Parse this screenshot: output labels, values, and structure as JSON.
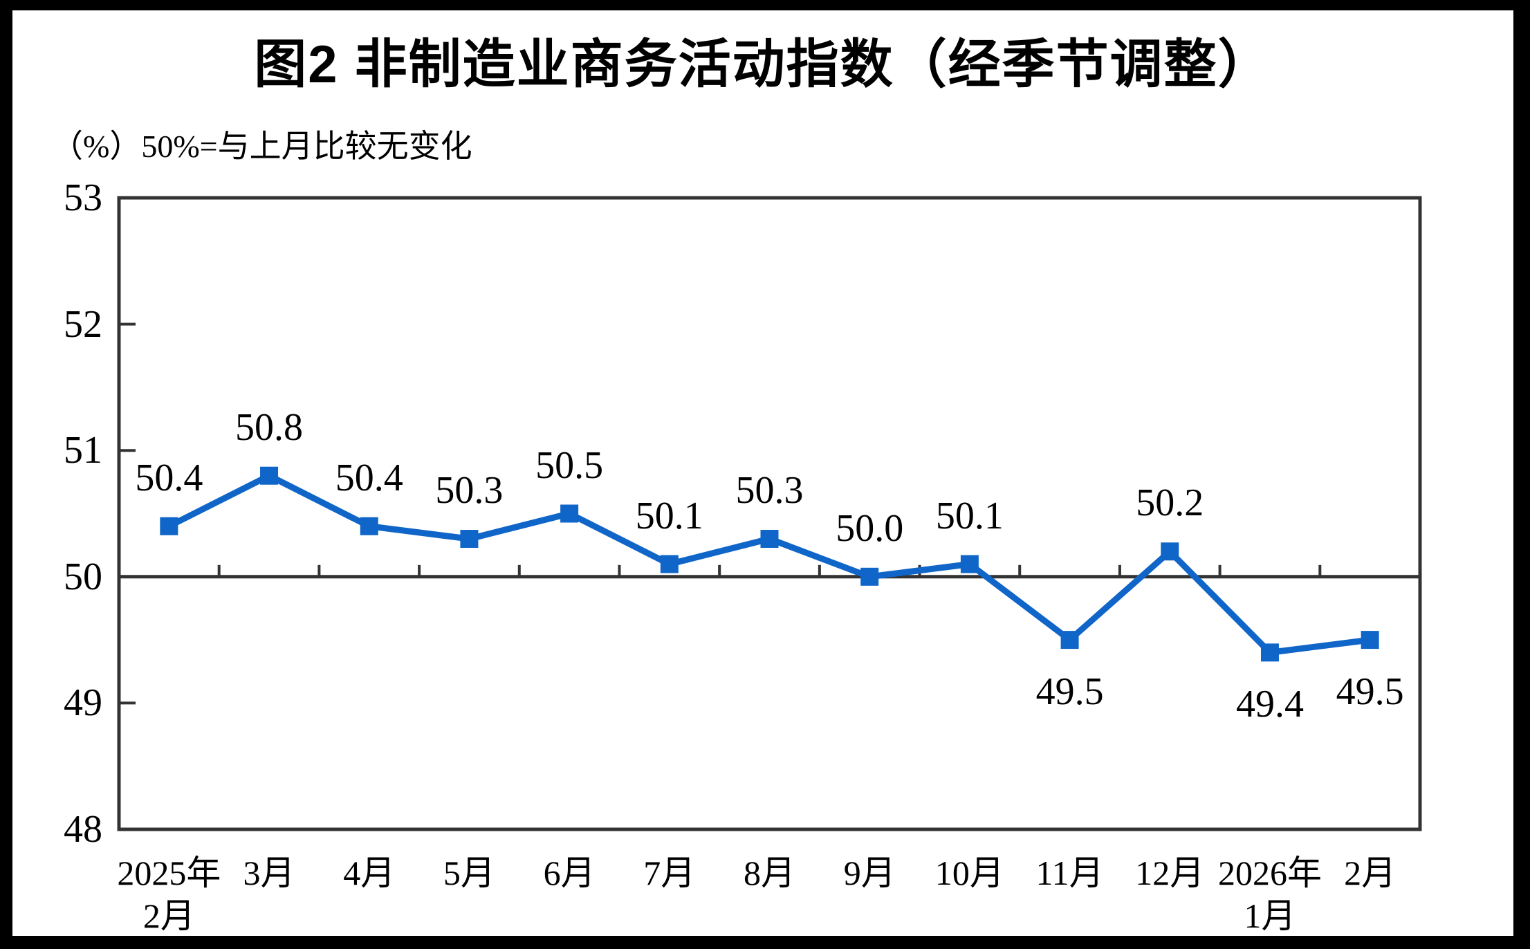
{
  "chart": {
    "figure_label": "图2",
    "title": "图2 非制造业商务活动指数（经季节调整）",
    "unit_note": "（%）50%=与上月比较无变化"
  },
  "chart_data": {
    "type": "line",
    "title": "图2 非制造业商务活动指数（经季节调整）",
    "subtitle": "（%）50%=与上月比较无变化",
    "ylabel": "%",
    "categories": [
      [
        "2025年",
        "2月"
      ],
      [
        "3月"
      ],
      [
        "4月"
      ],
      [
        "5月"
      ],
      [
        "6月"
      ],
      [
        "7月"
      ],
      [
        "8月"
      ],
      [
        "9月"
      ],
      [
        "10月"
      ],
      [
        "11月"
      ],
      [
        "12月"
      ],
      [
        "2026年",
        "1月"
      ],
      [
        "2月"
      ]
    ],
    "series": [
      {
        "name": "非制造业商务活动指数（经季节调整）",
        "values": [
          50.4,
          50.8,
          50.4,
          50.3,
          50.5,
          50.1,
          50.3,
          50.0,
          50.1,
          49.5,
          50.2,
          49.4,
          49.5
        ]
      }
    ],
    "point_labels": [
      "50.4",
      "50.8",
      "50.4",
      "50.3",
      "50.5",
      "50.1",
      "50.3",
      "50.0",
      "50.1",
      "49.5",
      "50.2",
      "49.4",
      "49.5"
    ],
    "label_side": [
      "above",
      "above",
      "above",
      "above",
      "above",
      "above",
      "above",
      "above",
      "above",
      "below",
      "above",
      "below",
      "below"
    ],
    "ylim": [
      48,
      53
    ],
    "yticks": [
      "53",
      "52",
      "51",
      "50",
      "49",
      "48"
    ],
    "reference_line": 50,
    "grid": "off",
    "legend": "none",
    "marker": "square",
    "series_color": "#1065C8",
    "axis_color": "#333333",
    "text_color": "#000000"
  }
}
